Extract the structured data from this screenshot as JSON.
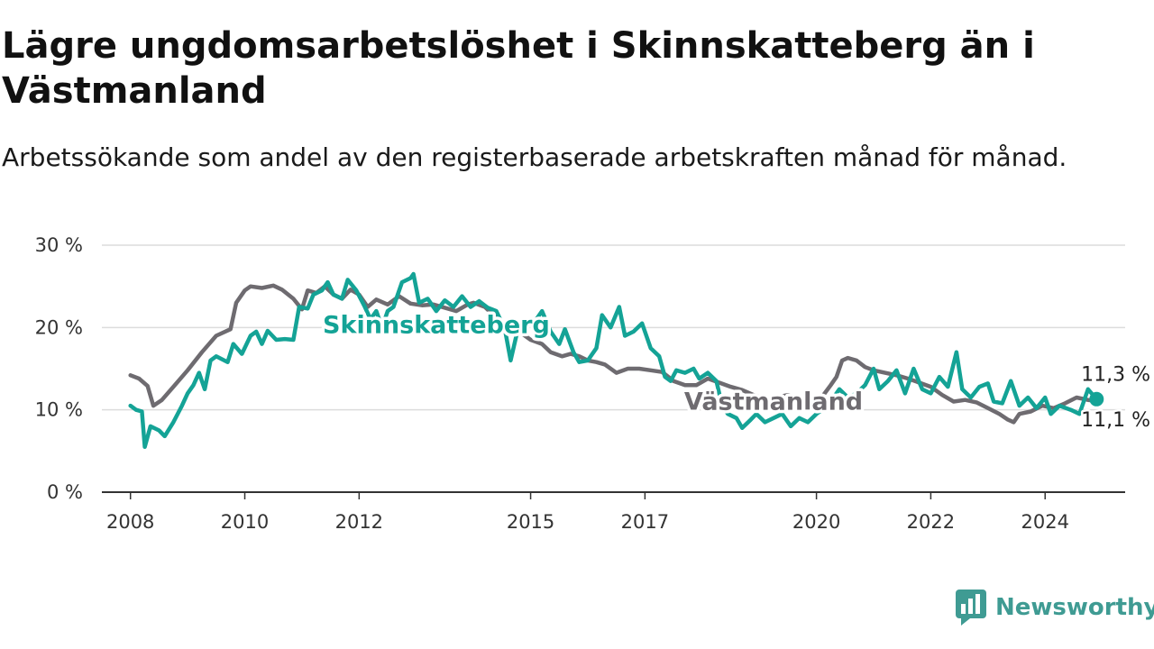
{
  "header": {
    "title": "Lägre ungdomsarbetslöshet i Skinnskatteberg än i Västmanland",
    "subtitle": "Arbetssökande som andel av den registerbaserade arbetskraften månad för månad."
  },
  "brand": {
    "name": "Newsworthy",
    "icon": "newsworthy-logo-icon",
    "color": "#3f9b93"
  },
  "colors": {
    "skinnskatteberg": "#14a396",
    "vastmanland": "#6e6b70",
    "grid": "#dcdcdc",
    "axis": "#333333"
  },
  "chart_data": {
    "type": "line",
    "title": "Lägre ungdomsarbetslöshet i Skinnskatteberg än i Västmanland",
    "subtitle": "Arbetssökande som andel av den registerbaserade arbetskraften månad för månad.",
    "xlabel": "",
    "ylabel": "",
    "ylim": [
      0,
      30
    ],
    "xlim": [
      2007.5,
      2025.4
    ],
    "yticks": [
      0,
      10,
      20,
      30
    ],
    "ytick_labels": [
      "0 %",
      "10 %",
      "20 %",
      "30 %"
    ],
    "xticks": [
      2008,
      2010,
      2012,
      2015,
      2017,
      2020,
      2022,
      2024
    ],
    "xtick_labels": [
      "2008",
      "2010",
      "2012",
      "2015",
      "2017",
      "2020",
      "2022",
      "2024"
    ],
    "grid": true,
    "legend": "inline labels",
    "series": [
      {
        "name": "Västmanland",
        "color": "#6e6b70",
        "end_label": "11,1 %",
        "points": [
          [
            2008.0,
            14.2
          ],
          [
            2008.15,
            13.8
          ],
          [
            2008.3,
            12.9
          ],
          [
            2008.4,
            10.5
          ],
          [
            2008.55,
            11.2
          ],
          [
            2008.75,
            12.8
          ],
          [
            2009.0,
            14.8
          ],
          [
            2009.25,
            17.0
          ],
          [
            2009.5,
            19.0
          ],
          [
            2009.75,
            19.8
          ],
          [
            2009.85,
            23.0
          ],
          [
            2010.0,
            24.5
          ],
          [
            2010.1,
            25.0
          ],
          [
            2010.3,
            24.8
          ],
          [
            2010.5,
            25.1
          ],
          [
            2010.65,
            24.6
          ],
          [
            2010.85,
            23.5
          ],
          [
            2011.0,
            22.2
          ],
          [
            2011.1,
            24.5
          ],
          [
            2011.25,
            24.2
          ],
          [
            2011.4,
            25.0
          ],
          [
            2011.55,
            24.0
          ],
          [
            2011.7,
            23.5
          ],
          [
            2011.85,
            24.6
          ],
          [
            2012.0,
            24.0
          ],
          [
            2012.15,
            22.5
          ],
          [
            2012.3,
            23.4
          ],
          [
            2012.5,
            22.8
          ],
          [
            2012.7,
            23.8
          ],
          [
            2012.9,
            22.9
          ],
          [
            2013.1,
            22.7
          ],
          [
            2013.3,
            22.8
          ],
          [
            2013.5,
            22.4
          ],
          [
            2013.7,
            22.0
          ],
          [
            2013.9,
            22.8
          ],
          [
            2014.0,
            23.0
          ],
          [
            2014.2,
            22.5
          ],
          [
            2014.35,
            21.5
          ],
          [
            2014.5,
            20.5
          ],
          [
            2014.65,
            19.8
          ],
          [
            2014.8,
            19.5
          ],
          [
            2015.0,
            18.5
          ],
          [
            2015.2,
            18.0
          ],
          [
            2015.35,
            17.0
          ],
          [
            2015.55,
            16.5
          ],
          [
            2015.7,
            16.8
          ],
          [
            2015.85,
            16.5
          ],
          [
            2016.0,
            16.0
          ],
          [
            2016.15,
            15.8
          ],
          [
            2016.3,
            15.5
          ],
          [
            2016.5,
            14.5
          ],
          [
            2016.7,
            15.0
          ],
          [
            2016.9,
            15.0
          ],
          [
            2017.1,
            14.8
          ],
          [
            2017.3,
            14.6
          ],
          [
            2017.5,
            13.5
          ],
          [
            2017.7,
            13.0
          ],
          [
            2017.9,
            13.0
          ],
          [
            2018.1,
            13.8
          ],
          [
            2018.3,
            13.3
          ],
          [
            2018.5,
            12.8
          ],
          [
            2018.7,
            12.4
          ],
          [
            2018.9,
            11.8
          ],
          [
            2019.1,
            11.4
          ],
          [
            2019.3,
            11.5
          ],
          [
            2019.5,
            11.8
          ],
          [
            2019.7,
            11.5
          ],
          [
            2019.9,
            11.3
          ],
          [
            2020.1,
            11.6
          ],
          [
            2020.25,
            13.0
          ],
          [
            2020.35,
            14.0
          ],
          [
            2020.45,
            16.0
          ],
          [
            2020.55,
            16.3
          ],
          [
            2020.7,
            16.0
          ],
          [
            2020.85,
            15.2
          ],
          [
            2021.0,
            14.8
          ],
          [
            2021.2,
            14.5
          ],
          [
            2021.4,
            14.2
          ],
          [
            2021.6,
            13.8
          ],
          [
            2021.8,
            13.3
          ],
          [
            2022.0,
            12.8
          ],
          [
            2022.2,
            11.8
          ],
          [
            2022.4,
            11.0
          ],
          [
            2022.6,
            11.2
          ],
          [
            2022.8,
            10.9
          ],
          [
            2023.0,
            10.2
          ],
          [
            2023.2,
            9.5
          ],
          [
            2023.35,
            8.8
          ],
          [
            2023.45,
            8.5
          ],
          [
            2023.55,
            9.5
          ],
          [
            2023.75,
            9.8
          ],
          [
            2023.95,
            10.5
          ],
          [
            2024.15,
            10.2
          ],
          [
            2024.35,
            10.8
          ],
          [
            2024.55,
            11.5
          ],
          [
            2024.75,
            11.2
          ],
          [
            2024.9,
            11.1
          ]
        ]
      },
      {
        "name": "Skinnskatteberg",
        "color": "#14a396",
        "end_label": "11,3 %",
        "points": [
          [
            2008.0,
            10.5
          ],
          [
            2008.1,
            10.0
          ],
          [
            2008.2,
            9.8
          ],
          [
            2008.25,
            5.5
          ],
          [
            2008.35,
            8.0
          ],
          [
            2008.5,
            7.5
          ],
          [
            2008.6,
            6.8
          ],
          [
            2008.75,
            8.5
          ],
          [
            2008.9,
            10.5
          ],
          [
            2009.0,
            12.0
          ],
          [
            2009.1,
            13.0
          ],
          [
            2009.2,
            14.5
          ],
          [
            2009.3,
            12.5
          ],
          [
            2009.4,
            16.0
          ],
          [
            2009.5,
            16.5
          ],
          [
            2009.7,
            15.8
          ],
          [
            2009.8,
            18.0
          ],
          [
            2009.95,
            16.8
          ],
          [
            2010.1,
            19.0
          ],
          [
            2010.2,
            19.5
          ],
          [
            2010.3,
            18.0
          ],
          [
            2010.4,
            19.6
          ],
          [
            2010.55,
            18.5
          ],
          [
            2010.7,
            18.6
          ],
          [
            2010.85,
            18.5
          ],
          [
            2010.95,
            22.5
          ],
          [
            2011.1,
            22.3
          ],
          [
            2011.2,
            24.0
          ],
          [
            2011.35,
            24.5
          ],
          [
            2011.45,
            25.5
          ],
          [
            2011.55,
            24.0
          ],
          [
            2011.7,
            23.5
          ],
          [
            2011.8,
            25.8
          ],
          [
            2011.95,
            24.5
          ],
          [
            2012.1,
            22.5
          ],
          [
            2012.2,
            21.0
          ],
          [
            2012.3,
            22.0
          ],
          [
            2012.4,
            20.0
          ],
          [
            2012.5,
            22.0
          ],
          [
            2012.6,
            22.5
          ],
          [
            2012.75,
            25.5
          ],
          [
            2012.9,
            26.0
          ],
          [
            2012.95,
            26.5
          ],
          [
            2013.05,
            23.0
          ],
          [
            2013.2,
            23.5
          ],
          [
            2013.35,
            22.0
          ],
          [
            2013.5,
            23.3
          ],
          [
            2013.65,
            22.5
          ],
          [
            2013.8,
            23.8
          ],
          [
            2013.95,
            22.5
          ],
          [
            2014.1,
            23.2
          ],
          [
            2014.25,
            22.4
          ],
          [
            2014.4,
            22.0
          ],
          [
            2014.55,
            19.8
          ],
          [
            2014.65,
            16.0
          ],
          [
            2014.75,
            19.0
          ],
          [
            2014.9,
            21.0
          ],
          [
            2015.05,
            20.5
          ],
          [
            2015.2,
            22.0
          ],
          [
            2015.35,
            19.5
          ],
          [
            2015.5,
            18.0
          ],
          [
            2015.6,
            19.8
          ],
          [
            2015.75,
            17.0
          ],
          [
            2015.85,
            15.8
          ],
          [
            2016.0,
            16.0
          ],
          [
            2016.15,
            17.5
          ],
          [
            2016.25,
            21.5
          ],
          [
            2016.4,
            20.0
          ],
          [
            2016.55,
            22.5
          ],
          [
            2016.65,
            19.0
          ],
          [
            2016.8,
            19.5
          ],
          [
            2016.95,
            20.5
          ],
          [
            2017.1,
            17.5
          ],
          [
            2017.25,
            16.5
          ],
          [
            2017.35,
            14.0
          ],
          [
            2017.45,
            13.5
          ],
          [
            2017.55,
            14.8
          ],
          [
            2017.7,
            14.5
          ],
          [
            2017.85,
            15.0
          ],
          [
            2017.95,
            13.8
          ],
          [
            2018.1,
            14.5
          ],
          [
            2018.25,
            13.5
          ],
          [
            2018.35,
            10.5
          ],
          [
            2018.45,
            9.5
          ],
          [
            2018.6,
            9.0
          ],
          [
            2018.7,
            7.8
          ],
          [
            2018.85,
            8.8
          ],
          [
            2018.95,
            9.5
          ],
          [
            2019.1,
            8.5
          ],
          [
            2019.25,
            9.0
          ],
          [
            2019.4,
            9.5
          ],
          [
            2019.55,
            8.0
          ],
          [
            2019.7,
            9.0
          ],
          [
            2019.85,
            8.5
          ],
          [
            2020.0,
            9.5
          ],
          [
            2020.1,
            10.0
          ],
          [
            2020.25,
            11.0
          ],
          [
            2020.4,
            12.5
          ],
          [
            2020.55,
            11.5
          ],
          [
            2020.7,
            12.0
          ],
          [
            2020.85,
            13.0
          ],
          [
            2021.0,
            15.0
          ],
          [
            2021.1,
            12.5
          ],
          [
            2021.25,
            13.5
          ],
          [
            2021.4,
            14.8
          ],
          [
            2021.55,
            12.0
          ],
          [
            2021.7,
            15.0
          ],
          [
            2021.85,
            12.5
          ],
          [
            2022.0,
            12.0
          ],
          [
            2022.15,
            14.0
          ],
          [
            2022.3,
            12.8
          ],
          [
            2022.45,
            17.0
          ],
          [
            2022.55,
            12.5
          ],
          [
            2022.7,
            11.5
          ],
          [
            2022.85,
            12.8
          ],
          [
            2023.0,
            13.2
          ],
          [
            2023.1,
            11.0
          ],
          [
            2023.25,
            10.8
          ],
          [
            2023.4,
            13.5
          ],
          [
            2023.55,
            10.5
          ],
          [
            2023.7,
            11.5
          ],
          [
            2023.85,
            10.2
          ],
          [
            2024.0,
            11.5
          ],
          [
            2024.1,
            9.5
          ],
          [
            2024.25,
            10.5
          ],
          [
            2024.45,
            10.0
          ],
          [
            2024.6,
            9.5
          ],
          [
            2024.75,
            12.5
          ],
          [
            2024.9,
            11.3
          ]
        ]
      }
    ]
  }
}
